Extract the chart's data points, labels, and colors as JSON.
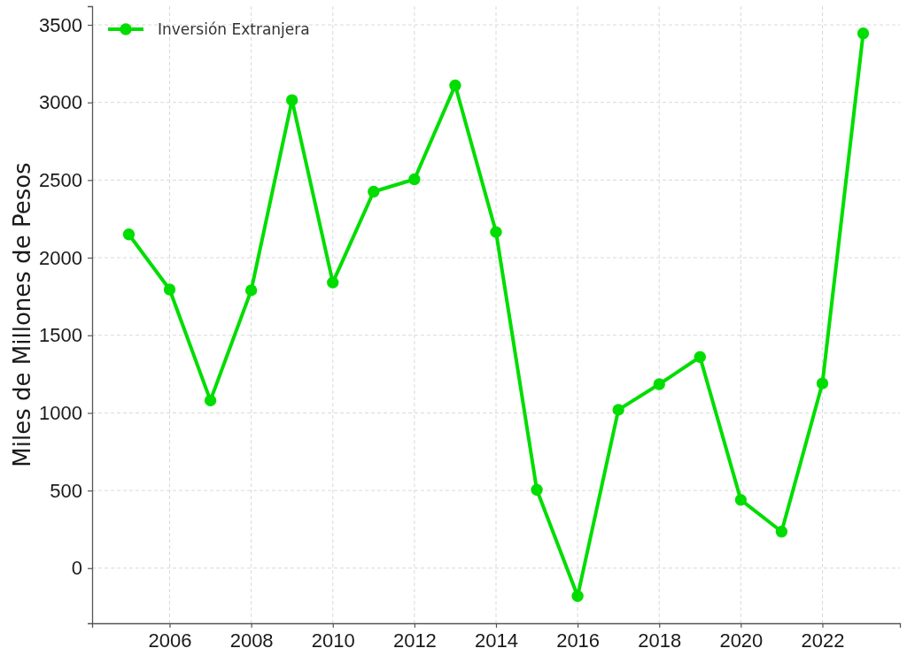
{
  "chart_data": {
    "type": "line",
    "ylabel": "Miles de Millones de Pesos",
    "x": [
      2005,
      2006,
      2007,
      2008,
      2009,
      2010,
      2011,
      2012,
      2013,
      2014,
      2015,
      2016,
      2017,
      2018,
      2019,
      2020,
      2021,
      2022,
      2023
    ],
    "series": [
      {
        "name": "Inversión Extranjera",
        "color": "#00dd00",
        "values": [
          2150,
          1795,
          1080,
          1790,
          3015,
          1840,
          2425,
          2505,
          3110,
          2165,
          505,
          -180,
          1020,
          1185,
          1360,
          440,
          235,
          1190,
          3445
        ]
      }
    ],
    "xlim": [
      2004.1,
      2023.9
    ],
    "xticks": [
      2006,
      2008,
      2010,
      2012,
      2014,
      2016,
      2018,
      2020,
      2022
    ],
    "ylim": [
      -355,
      3620
    ],
    "yticks": [
      0,
      500,
      1000,
      1500,
      2000,
      2500,
      3000,
      3500
    ],
    "grid": true,
    "legend": "top left",
    "marker": "circle",
    "line_style": "solid"
  }
}
